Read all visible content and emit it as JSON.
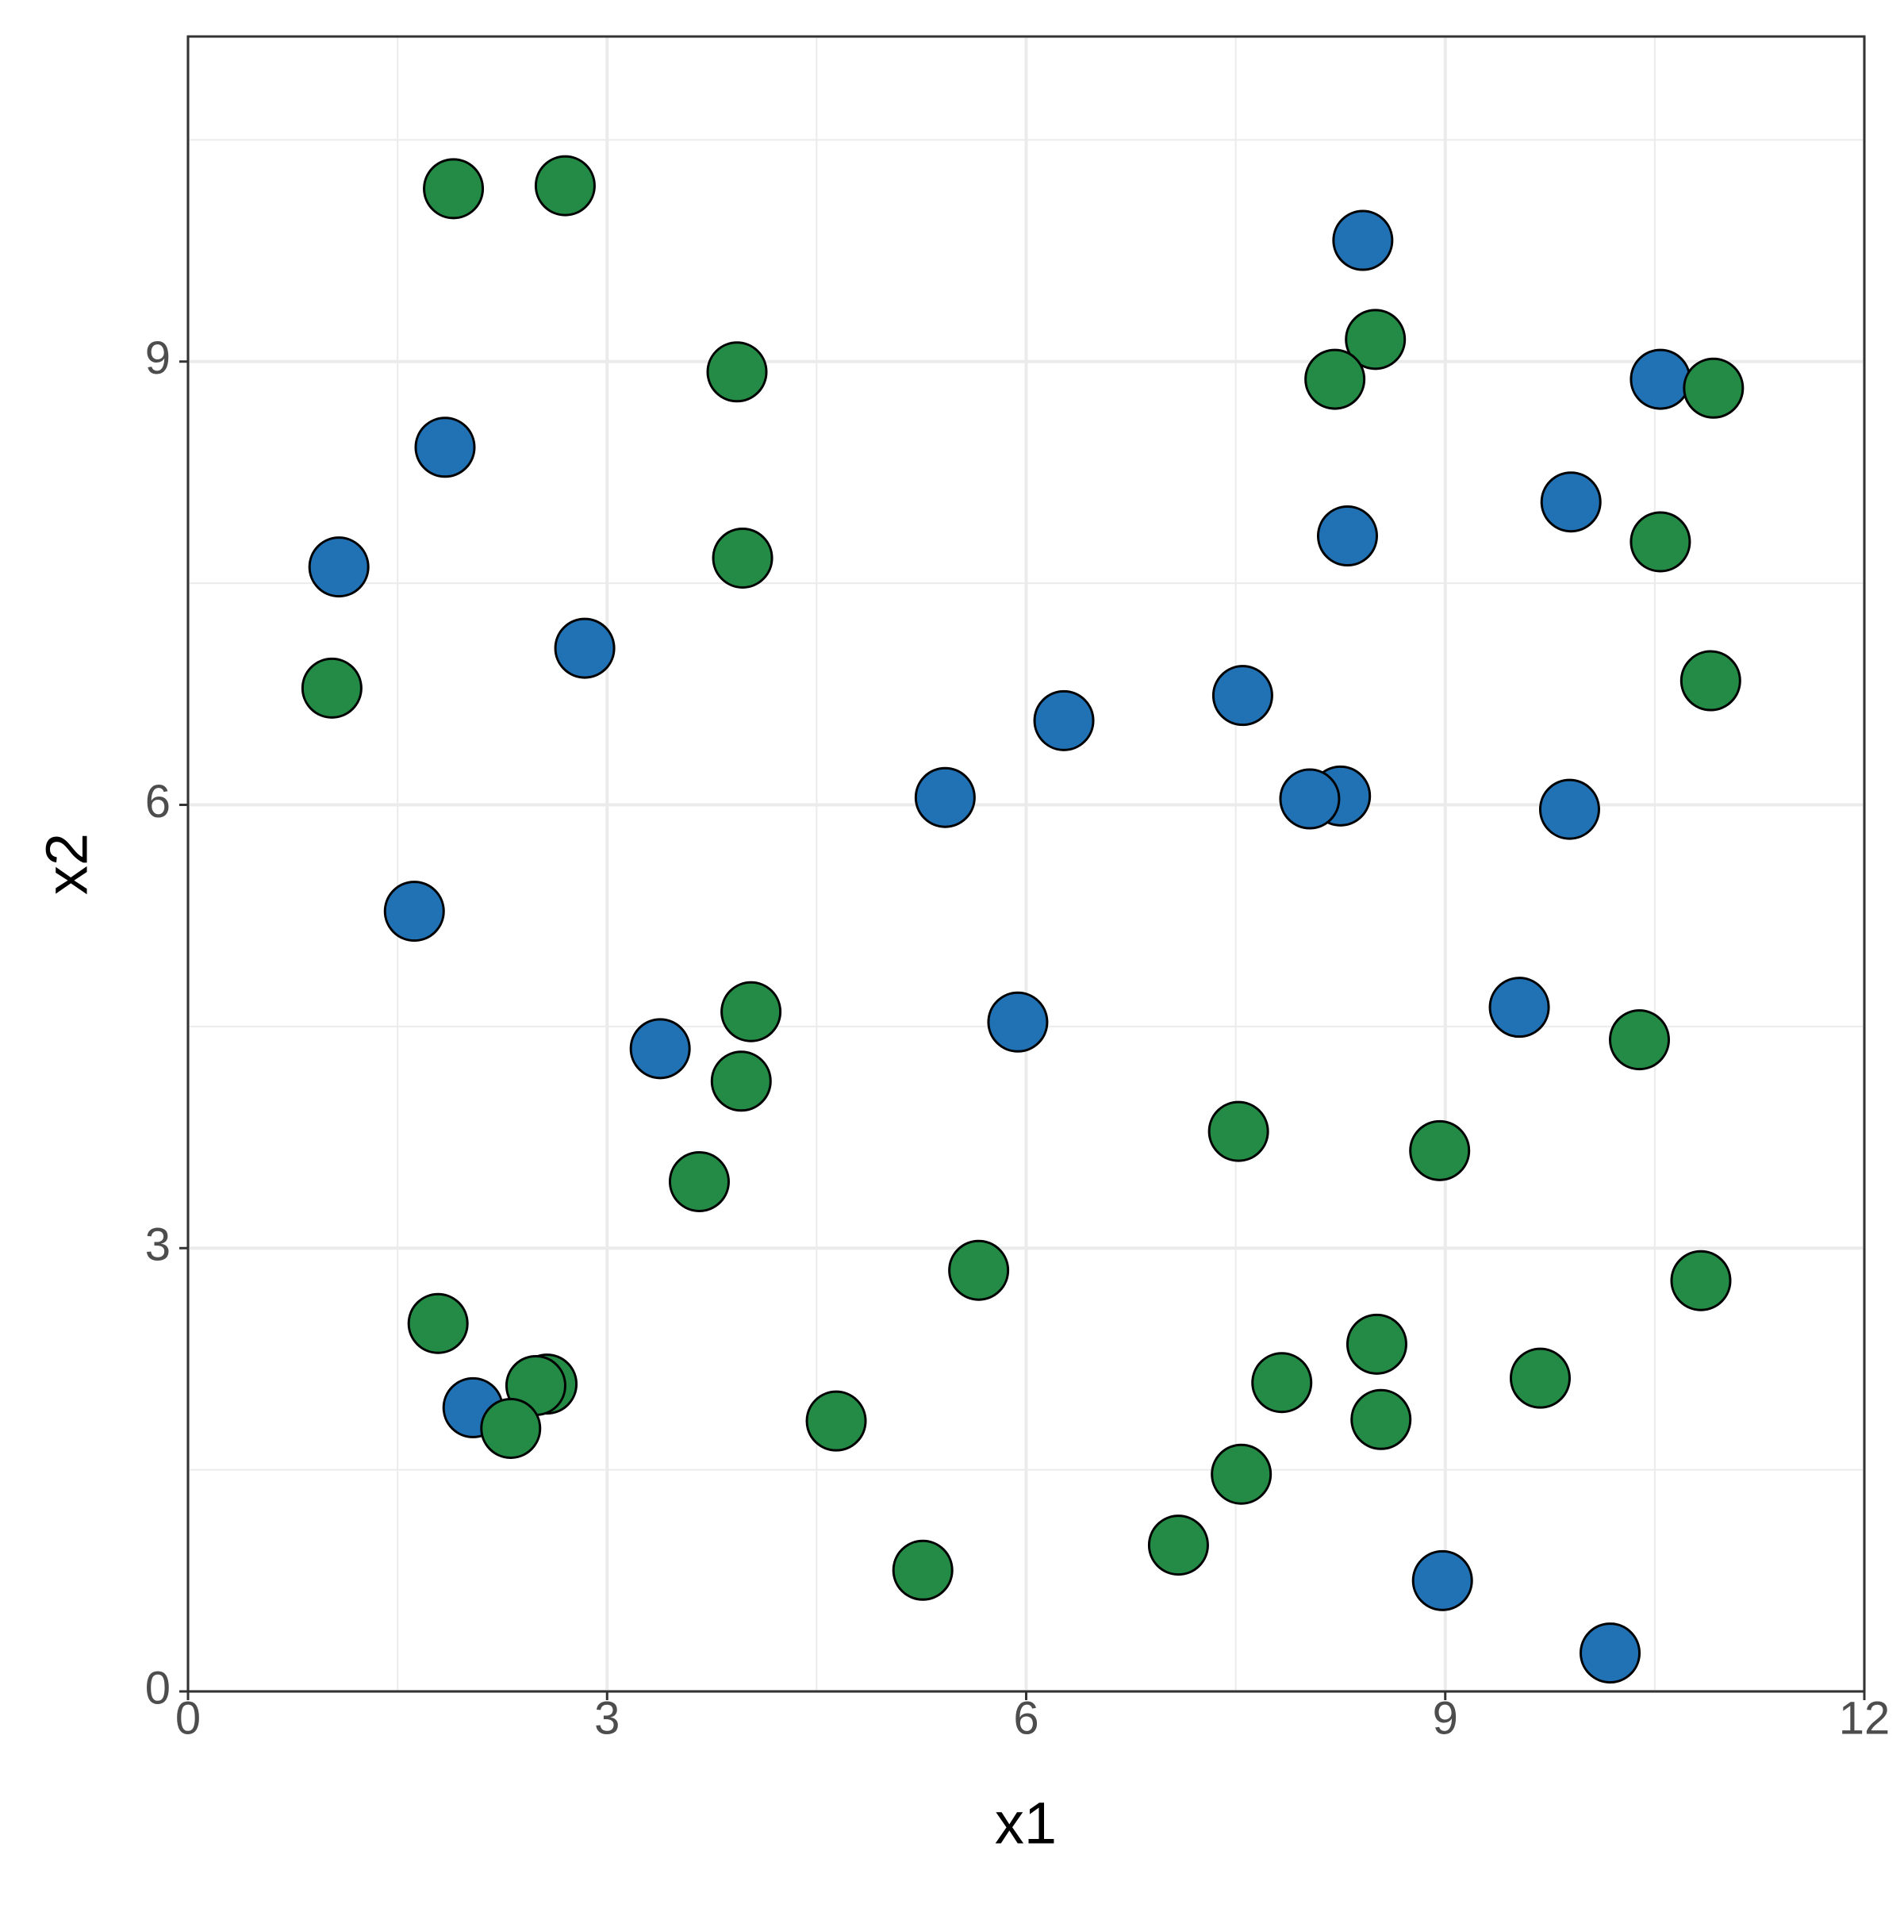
{
  "chart_data": {
    "type": "scatter",
    "x_label": "x1",
    "y_label": "x2",
    "xlim": [
      0,
      12
    ],
    "ylim": [
      0,
      11.2
    ],
    "xticks": [
      0,
      3,
      6,
      9,
      12
    ],
    "yticks": [
      0,
      3,
      6,
      9
    ],
    "grid": true,
    "series": [
      {
        "color": "#2171b5",
        "x": [
          1.08,
          1.84,
          2.84,
          1.62,
          2.04,
          3.38,
          8.41,
          8.3,
          9.9,
          10.54,
          6.27,
          7.55,
          5.42,
          8.25,
          8.03,
          9.89,
          5.94,
          9.53,
          8.98,
          10.18
        ],
        "values": [
          7.61,
          8.42,
          7.06,
          5.28,
          1.92,
          4.35,
          9.82,
          7.82,
          8.05,
          8.88,
          6.57,
          6.74,
          6.05,
          6.06,
          6.04,
          5.97,
          4.53,
          4.63,
          0.75,
          0.26
        ]
      },
      {
        "color": "#238b45",
        "x": [
          1.9,
          2.7,
          3.93,
          3.97,
          1.03,
          8.5,
          8.21,
          10.92,
          10.54,
          10.9,
          4.03,
          3.96,
          3.66,
          10.39,
          7.52,
          8.96,
          5.66,
          10.83,
          1.79,
          2.57,
          2.49,
          2.31,
          4.64,
          7.83,
          8.51,
          8.54,
          9.68,
          7.54,
          7.09,
          5.26
        ],
        "values": [
          10.17,
          10.19,
          8.93,
          7.67,
          6.79,
          9.15,
          8.88,
          8.82,
          7.78,
          6.84,
          4.6,
          4.13,
          3.45,
          4.41,
          3.79,
          3.66,
          2.85,
          2.78,
          2.49,
          2.08,
          2.07,
          1.78,
          1.83,
          2.09,
          2.35,
          1.84,
          2.12,
          1.47,
          0.99,
          0.82
        ]
      }
    ]
  }
}
